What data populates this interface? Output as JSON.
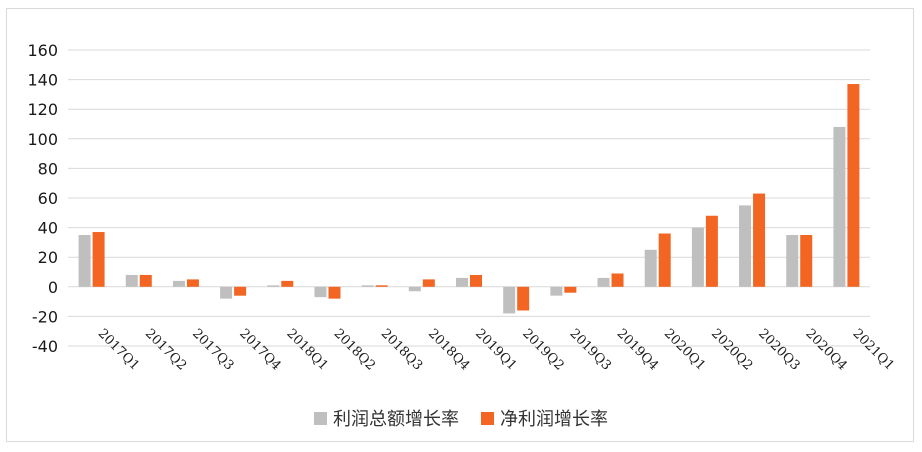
{
  "chart_data": {
    "type": "bar",
    "categories": [
      "2017Q1",
      "2017Q2",
      "2017Q3",
      "2017Q4",
      "2018Q1",
      "2018Q2",
      "2018Q3",
      "2018Q4",
      "2019Q1",
      "2019Q2",
      "2019Q3",
      "2019Q4",
      "2020Q1",
      "2020Q2",
      "2020Q3",
      "2020Q4",
      "2021Q1"
    ],
    "series": [
      {
        "name": "利润总额增长率",
        "color": "#bfbfbf",
        "values": [
          35,
          8,
          4,
          -8,
          1,
          -7,
          1,
          -3,
          6,
          -18,
          -6,
          6,
          25,
          40,
          55,
          35,
          108
        ]
      },
      {
        "name": "净利润增长率",
        "color": "#f26522",
        "values": [
          37,
          8,
          5,
          -6,
          4,
          -8,
          1,
          5,
          8,
          -16,
          -4,
          9,
          36,
          48,
          63,
          35,
          137
        ]
      }
    ],
    "yticks": [
      "160",
      "140",
      "120",
      "100",
      "80",
      "60",
      "40",
      "20",
      "0",
      "-20",
      "-40"
    ],
    "ylim": [
      -40,
      160
    ],
    "grid": true,
    "legend_position": "bottom"
  }
}
